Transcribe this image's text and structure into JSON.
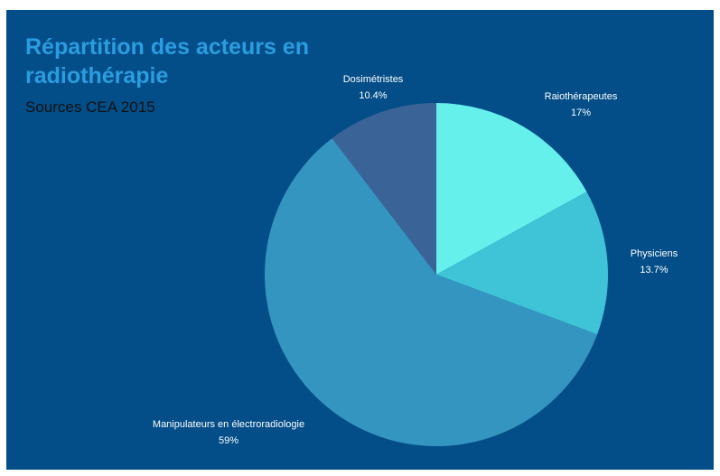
{
  "chart_data": {
    "type": "pie",
    "title": "Répartition des acteurs en radiothérapie",
    "subtitle": "Sources CEA 2015",
    "categories": [
      "Raiothérapeutes",
      "Physiciens",
      "Manipulateurs en électroradiologie",
      "Dosimétristes"
    ],
    "values": [
      17,
      13.7,
      59,
      10.4
    ],
    "value_labels": [
      "17%",
      "13.7%",
      "59%",
      "10.4%"
    ],
    "colors": [
      "#65f0ec",
      "#3fc3d6",
      "#3496c0",
      "#3a6497"
    ]
  }
}
